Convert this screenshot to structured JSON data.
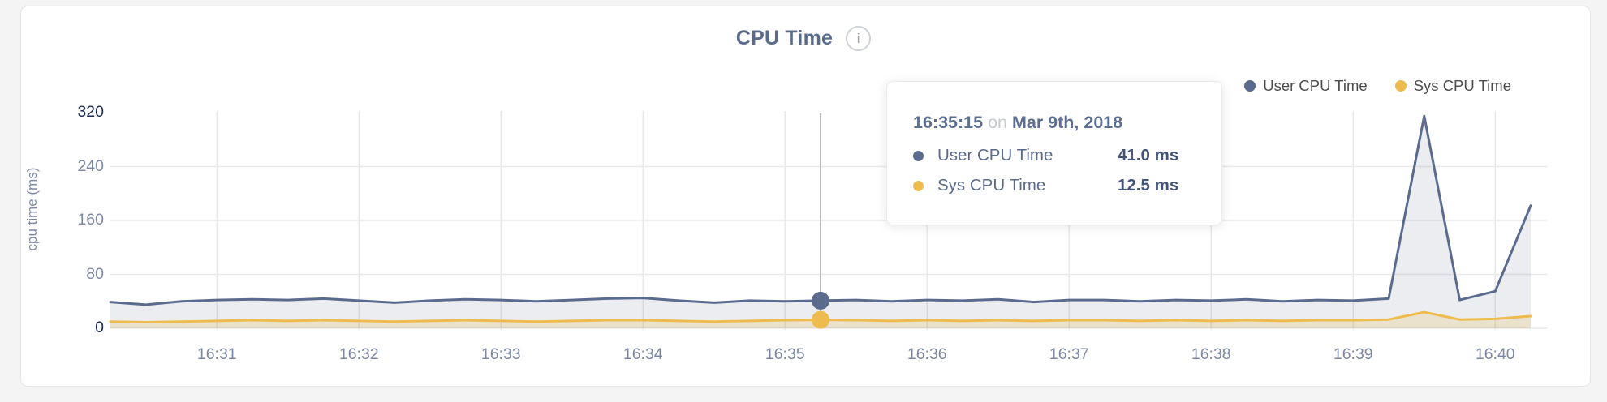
{
  "header": {
    "title": "CPU Time",
    "info_icon_glyph": "i"
  },
  "legend": [
    {
      "label": "User CPU Time",
      "color": "#5b6b8e"
    },
    {
      "label": "Sys CPU Time",
      "color": "#eebc4e"
    }
  ],
  "tooltip": {
    "time": "16:35:15",
    "conjunction": "on",
    "date": "Mar 9th, 2018",
    "rows": [
      {
        "label": "User CPU Time",
        "value": "41.0 ms",
        "color": "#5b6b8e"
      },
      {
        "label": "Sys CPU Time",
        "value": "12.5 ms",
        "color": "#eebc4e"
      }
    ]
  },
  "chart_data": {
    "type": "area",
    "title": "CPU Time",
    "xlabel": "",
    "ylabel": "cpu time (ms)",
    "ylim": [
      0,
      320
    ],
    "y_ticks": [
      0,
      80,
      160,
      240,
      320
    ],
    "x_ticks": [
      "16:31",
      "16:32",
      "16:33",
      "16:34",
      "16:35",
      "16:36",
      "16:37",
      "16:38",
      "16:39",
      "16:40"
    ],
    "grid": "on",
    "legend_position": "top-right",
    "x": [
      "16:30:15",
      "16:30:30",
      "16:30:45",
      "16:31:00",
      "16:31:15",
      "16:31:30",
      "16:31:45",
      "16:32:00",
      "16:32:15",
      "16:32:30",
      "16:32:45",
      "16:33:00",
      "16:33:15",
      "16:33:30",
      "16:33:45",
      "16:34:00",
      "16:34:15",
      "16:34:30",
      "16:34:45",
      "16:35:00",
      "16:35:15",
      "16:35:30",
      "16:35:45",
      "16:36:00",
      "16:36:15",
      "16:36:30",
      "16:36:45",
      "16:37:00",
      "16:37:15",
      "16:37:30",
      "16:37:45",
      "16:38:00",
      "16:38:15",
      "16:38:30",
      "16:38:45",
      "16:39:00",
      "16:39:15",
      "16:39:30",
      "16:39:45",
      "16:40:00",
      "16:40:15"
    ],
    "series": [
      {
        "name": "User CPU Time",
        "color": "#5b6b8e",
        "fill": "rgba(91,107,142,0.12)",
        "values": [
          39,
          35,
          40,
          42,
          43,
          42,
          44,
          41,
          38,
          41,
          43,
          42,
          40,
          42,
          44,
          45,
          41,
          38,
          41,
          40,
          41,
          42,
          40,
          42,
          41,
          43,
          39,
          42,
          42,
          40,
          42,
          41,
          43,
          40,
          42,
          41,
          44,
          315,
          42,
          55,
          182
        ]
      },
      {
        "name": "Sys CPU Time",
        "color": "#eebc4e",
        "fill": "rgba(238,188,78,0.22)",
        "values": [
          10,
          9,
          10,
          11,
          12,
          11,
          12,
          11,
          10,
          11,
          12,
          11,
          10,
          11,
          12,
          12,
          11,
          10,
          11,
          12,
          12.5,
          12,
          11,
          12,
          11,
          12,
          11,
          12,
          12,
          11,
          12,
          11,
          12,
          11,
          12,
          12,
          13,
          24,
          13,
          14,
          18
        ]
      }
    ],
    "highlight": {
      "x": "16:35:15",
      "index": 20,
      "values": [
        41.0,
        12.5
      ],
      "cursor_color": "#b8b8b8"
    },
    "grid_color": "#e9e9e9"
  }
}
